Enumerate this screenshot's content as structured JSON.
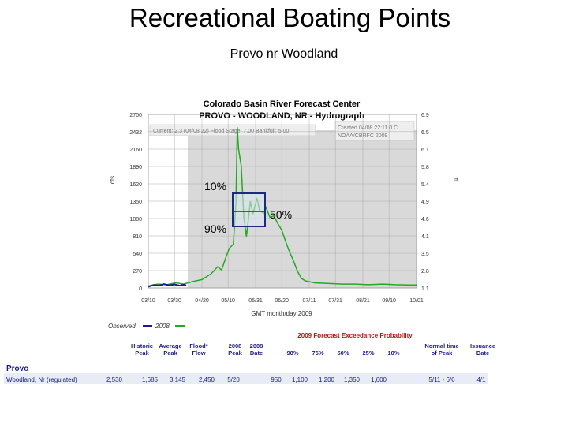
{
  "slide": {
    "title": "Recreational Boating Points",
    "subtitle": "Provo nr Woodland"
  },
  "chart_data": {
    "type": "line",
    "header": "Colorado Basin River Forecast Center",
    "title": "PROVO - WOODLAND, NR - Hydrograph",
    "info_left": "Current: 2.3 (04/08 22)  Flood Stage: 7.00  Bankfull: 5.00",
    "info_right": [
      "Created 04/08 22:11 0 C",
      "NOAA/CBRFC 2009"
    ],
    "ylabel_left": "cfs",
    "ylabel_right": "ft",
    "xlabel": "GMT month/day 2009",
    "y_ticks_left": [
      "2700",
      "2432",
      "2160",
      "1890",
      "1620",
      "1350",
      "1080",
      "810",
      "540",
      "270",
      "0"
    ],
    "y_ticks_right": [
      "6.9",
      "6.5",
      "6.1",
      "5.8",
      "5.4",
      "4.9",
      "4.6",
      "4.1",
      "3.5",
      "2.8",
      "1.1"
    ],
    "x_ticks": [
      "03/10",
      "03/30",
      "04/20",
      "05/10",
      "05/31",
      "06/20",
      "07/11",
      "07/31",
      "08/21",
      "09/10",
      "10/01"
    ],
    "ylim": [
      0,
      2700
    ],
    "legend": [
      {
        "name": "Observed",
        "color": "#1a1a8c"
      },
      {
        "name": "2008",
        "color": "#22aa22"
      }
    ],
    "series": [
      {
        "name": "2008",
        "color": "#22aa22",
        "points": [
          [
            "03/10",
            30
          ],
          [
            "03/17",
            60
          ],
          [
            "03/24",
            50
          ],
          [
            "03/31",
            80
          ],
          [
            "04/06",
            60
          ],
          [
            "04/13",
            100
          ],
          [
            "04/20",
            130
          ],
          [
            "04/27",
            220
          ],
          [
            "05/02",
            330
          ],
          [
            "05/05",
            280
          ],
          [
            "05/08",
            460
          ],
          [
            "05/11",
            620
          ],
          [
            "05/14",
            680
          ],
          [
            "05/16",
            1320
          ],
          [
            "05/17",
            2500
          ],
          [
            "05/18",
            2160
          ],
          [
            "05/20",
            1900
          ],
          [
            "05/22",
            1100
          ],
          [
            "05/24",
            800
          ],
          [
            "05/27",
            1350
          ],
          [
            "05/29",
            1150
          ],
          [
            "06/01",
            1400
          ],
          [
            "06/03",
            1210
          ],
          [
            "06/06",
            1160
          ],
          [
            "06/08",
            1250
          ],
          [
            "06/11",
            1100
          ],
          [
            "06/14",
            1120
          ],
          [
            "06/17",
            1000
          ],
          [
            "06/20",
            900
          ],
          [
            "06/23",
            720
          ],
          [
            "06/26",
            560
          ],
          [
            "06/29",
            420
          ],
          [
            "07/02",
            260
          ],
          [
            "07/05",
            150
          ],
          [
            "07/08",
            110
          ],
          [
            "07/15",
            80
          ],
          [
            "07/25",
            70
          ],
          [
            "08/05",
            60
          ],
          [
            "08/15",
            60
          ],
          [
            "08/25",
            50
          ],
          [
            "09/05",
            60
          ],
          [
            "09/15",
            50
          ],
          [
            "09/25",
            45
          ],
          [
            "10/01",
            45
          ]
        ]
      },
      {
        "name": "Observed",
        "color": "#1a1a8c",
        "points": [
          [
            "03/10",
            20
          ],
          [
            "03/14",
            45
          ],
          [
            "03/18",
            35
          ],
          [
            "03/22",
            60
          ],
          [
            "03/26",
            40
          ],
          [
            "03/30",
            55
          ],
          [
            "04/03",
            35
          ],
          [
            "04/06",
            50
          ],
          [
            "04/08",
            40
          ]
        ]
      }
    ],
    "overlay": {
      "labels": [
        "10%",
        "50%",
        "90%"
      ]
    },
    "table": {
      "headers": [
        "Historic Peak",
        "Average Peak",
        "Flood* Flow",
        "2008 Peak",
        "2008 Date",
        "90%",
        "75%",
        "50%",
        "25%",
        "10%",
        "Normal time of Peak",
        "Issuance Date"
      ],
      "group_header": "2009 Forecast Exceedance Probability",
      "section": "Provo",
      "row": {
        "name": "Woodland, Nr (regulated)",
        "values": [
          "2,530",
          "1,685",
          "3,145",
          "2,450",
          "5/20",
          "950",
          "1,100",
          "1,200",
          "1,350",
          "1,600",
          "5/11 - 6/6",
          "4/1"
        ]
      }
    }
  }
}
